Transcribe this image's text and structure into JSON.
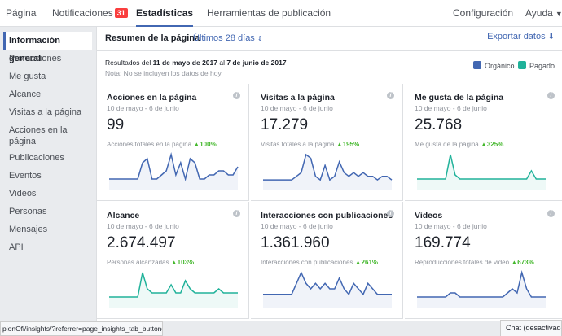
{
  "nav": {
    "tabs": [
      {
        "label": "Página"
      },
      {
        "label": "Notificaciones",
        "badge": "31"
      },
      {
        "label": "Estadísticas"
      },
      {
        "label": "Herramientas de publicación"
      }
    ],
    "settings": "Configuración",
    "help": "Ayuda"
  },
  "sidebar": {
    "items": [
      {
        "label": "Información general"
      },
      {
        "label": "Promociones"
      },
      {
        "label": "Me gusta"
      },
      {
        "label": "Alcance"
      },
      {
        "label": "Visitas a la página"
      },
      {
        "label": "Acciones en la página"
      },
      {
        "label": "Publicaciones"
      },
      {
        "label": "Eventos"
      },
      {
        "label": "Videos"
      },
      {
        "label": "Personas"
      },
      {
        "label": "Mensajes"
      },
      {
        "label": "API"
      }
    ]
  },
  "summary": {
    "title": "Resumen de la página",
    "range": "Últimos 28 días",
    "export": "Exportar datos",
    "results_prefix": "Resultados del ",
    "results_start": "11 de mayo de 2017",
    "results_mid": " al ",
    "results_end": "7 de junio de 2017",
    "note": "Nota: No se incluyen los datos de hoy"
  },
  "legend": {
    "organic": {
      "label": "Orgánico",
      "color": "#4267b2"
    },
    "paid": {
      "label": "Pagado",
      "color": "#20b29a"
    }
  },
  "cards": [
    {
      "title": "Acciones en la página",
      "date": "10 de mayo - 6 de junio",
      "value": "99",
      "sub": "Acciones totales en la página",
      "change": "▲100%",
      "color": "#4267b2",
      "series": [
        2,
        2,
        2,
        2,
        2,
        2,
        2,
        6,
        7,
        2,
        2,
        3,
        4,
        8,
        3,
        6,
        2,
        7,
        6,
        2,
        2,
        3,
        3,
        4,
        4,
        3,
        3,
        5
      ]
    },
    {
      "title": "Visitas a la página",
      "date": "10 de mayo - 6 de junio",
      "value": "17.279",
      "sub": "Visitas totales a la página",
      "change": "▲195%",
      "color": "#4267b2",
      "series": [
        2,
        2,
        2,
        2,
        2,
        2,
        2,
        3,
        4,
        9,
        8,
        3,
        2,
        6,
        2,
        3,
        7,
        4,
        3,
        4,
        3,
        4,
        3,
        3,
        2,
        3,
        3,
        2
      ]
    },
    {
      "title": "Me gusta de la página",
      "date": "10 de mayo - 6 de junio",
      "value": "25.768",
      "sub": "Me gusta de la página",
      "change": "▲325%",
      "color": "#20b29a",
      "series": [
        2,
        2,
        2,
        2,
        2,
        2,
        2,
        8,
        3,
        2,
        2,
        2,
        2,
        2,
        2,
        2,
        2,
        2,
        2,
        2,
        2,
        2,
        2,
        2,
        4,
        2,
        2,
        2
      ]
    },
    {
      "title": "Alcance",
      "date": "10 de mayo - 6 de junio",
      "value": "2.674.497",
      "sub": "Personas alcanzadas",
      "change": "▲103%",
      "color": "#20b29a",
      "series": [
        2,
        2,
        2,
        2,
        2,
        2,
        2,
        8,
        4,
        3,
        3,
        3,
        3,
        5,
        3,
        3,
        6,
        4,
        3,
        3,
        3,
        3,
        3,
        4,
        3,
        3,
        3,
        3
      ]
    },
    {
      "title": "Interacciones con publicaciones",
      "date": "10 de mayo - 6 de junio",
      "value": "1.361.960",
      "sub": "Interacciones con publicaciones",
      "change": "▲261%",
      "color": "#4267b2",
      "series": [
        2,
        2,
        2,
        2,
        2,
        2,
        2,
        4,
        6,
        4,
        3,
        4,
        3,
        4,
        3,
        3,
        5,
        3,
        2,
        4,
        3,
        2,
        4,
        3,
        2,
        2,
        2,
        2
      ]
    },
    {
      "title": "Videos",
      "date": "10 de mayo - 6 de junio",
      "value": "169.774",
      "sub": "Reproducciones totales de video",
      "change": "▲673%",
      "color": "#4267b2",
      "series": [
        2,
        2,
        2,
        2,
        2,
        2,
        2,
        3,
        3,
        2,
        2,
        2,
        2,
        2,
        2,
        2,
        2,
        2,
        2,
        3,
        4,
        3,
        8,
        4,
        2,
        2,
        2,
        2
      ]
    }
  ],
  "statusbar": "pionOfi/insights/?referrer=page_insights_tab_button#",
  "chat": "Chat (desactivado)"
}
